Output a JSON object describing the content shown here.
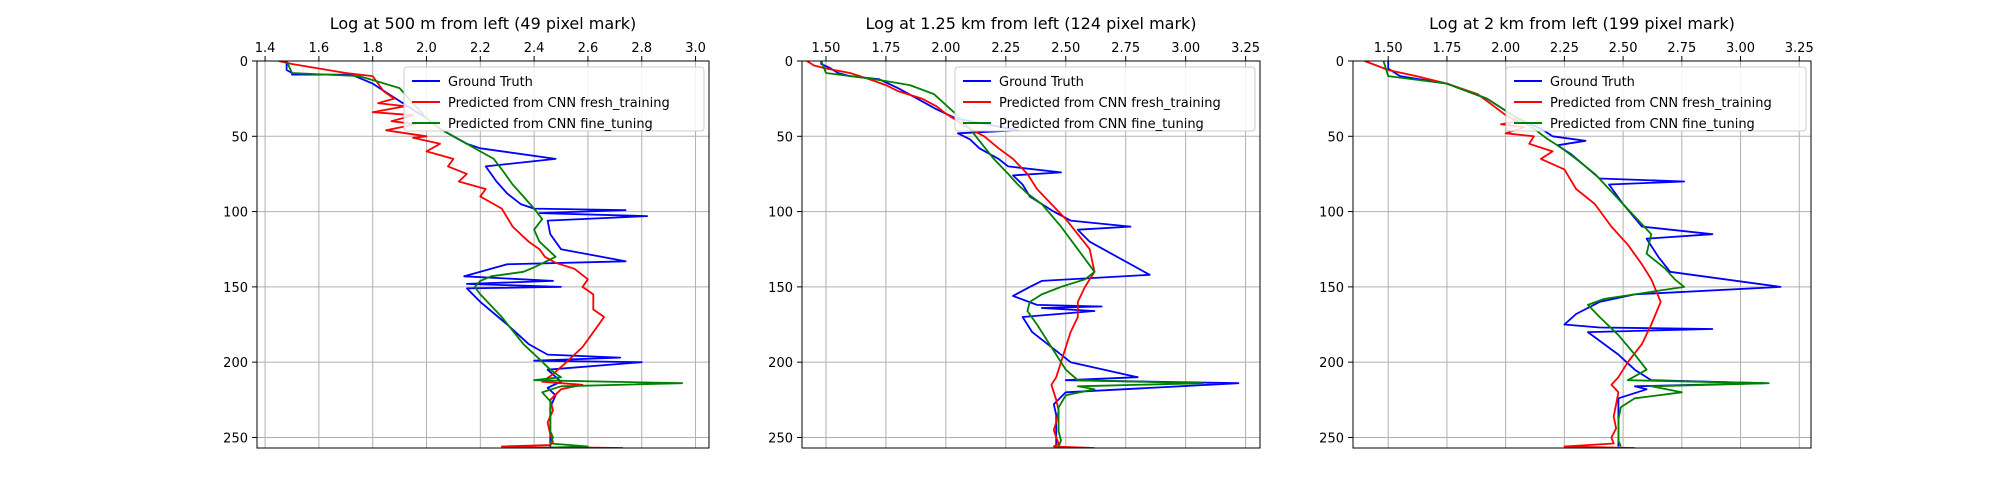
{
  "series_styles": [
    {
      "name": "Ground Truth",
      "color": "#0000ff"
    },
    {
      "name": "Predicted from CNN fresh_training",
      "color": "#ff0000"
    },
    {
      "name": "Predicted from CNN fine_tuning",
      "color": "#008000"
    }
  ],
  "chart_data": [
    {
      "type": "line",
      "orientation": "vertical-profile",
      "title": "Log at 500 m from left (49 pixel mark)",
      "xlim": [
        1.37,
        3.05
      ],
      "ylim": [
        257,
        0
      ],
      "xticks": [
        "1.4",
        "1.6",
        "1.8",
        "2.0",
        "2.2",
        "2.4",
        "2.6",
        "2.8",
        "3.0"
      ],
      "xtick_values": [
        1.4,
        1.6,
        1.8,
        2.0,
        2.2,
        2.4,
        2.6,
        2.8,
        3.0
      ],
      "yticks": [
        "0",
        "50",
        "100",
        "150",
        "200",
        "250"
      ],
      "ytick_values": [
        0,
        50,
        100,
        150,
        200,
        250
      ],
      "grid": true,
      "legend": "upper-right",
      "series": [
        {
          "name": "Ground Truth",
          "color": "#0000ff",
          "x": [
            1.48,
            1.48,
            1.5,
            1.5,
            1.72,
            1.8,
            1.86,
            1.93,
            2.0,
            2.05,
            2.1,
            2.15,
            2.2,
            2.48,
            2.22,
            2.26,
            2.3,
            2.35,
            2.4,
            2.74,
            2.42,
            2.82,
            2.45,
            2.46,
            2.5,
            2.74,
            2.3,
            2.14,
            2.47,
            2.15,
            2.5,
            2.15,
            2.2,
            2.3,
            2.38,
            2.45,
            2.72,
            2.4,
            2.8,
            2.45,
            2.5,
            2.45,
            2.48,
            2.46,
            2.46,
            2.46,
            2.46
          ],
          "y": [
            0,
            6,
            8,
            9,
            9,
            15,
            22,
            30,
            38,
            45,
            50,
            55,
            58,
            65,
            70,
            80,
            88,
            95,
            98,
            99,
            101,
            103,
            106,
            115,
            125,
            133,
            135,
            143,
            146,
            148,
            150,
            151,
            160,
            175,
            188,
            195,
            197,
            199,
            200,
            205,
            213,
            217,
            222,
            230,
            240,
            250,
            256
          ]
        },
        {
          "name": "Predicted from CNN fresh_training",
          "color": "#ff0000",
          "x": [
            1.45,
            1.5,
            1.6,
            1.7,
            1.8,
            1.84,
            1.88,
            1.82,
            1.92,
            1.8,
            1.95,
            1.87,
            1.96,
            1.85,
            2.0,
            1.95,
            2.05,
            2.0,
            2.1,
            2.08,
            2.15,
            2.12,
            2.22,
            2.2,
            2.28,
            2.32,
            2.38,
            2.42,
            2.44,
            2.48,
            2.55,
            2.6,
            2.58,
            2.62,
            2.62,
            2.66,
            2.62,
            2.58,
            2.52,
            2.47,
            2.43,
            2.58,
            2.5,
            2.46,
            2.47,
            2.45,
            2.46,
            2.47,
            2.46,
            2.28,
            2.73
          ],
          "y": [
            0,
            2,
            5,
            8,
            10,
            20,
            25,
            28,
            30,
            34,
            36,
            40,
            42,
            46,
            50,
            51,
            55,
            60,
            65,
            70,
            75,
            80,
            85,
            90,
            98,
            110,
            120,
            125,
            130,
            134,
            138,
            145,
            150,
            155,
            165,
            170,
            180,
            190,
            200,
            208,
            213,
            215,
            218,
            225,
            232,
            240,
            248,
            253,
            255,
            256,
            257
          ]
        },
        {
          "name": "Predicted from CNN fine_tuning",
          "color": "#008000",
          "x": [
            1.48,
            1.5,
            1.75,
            1.9,
            1.95,
            2.0,
            2.05,
            2.1,
            2.12,
            2.2,
            2.25,
            2.28,
            2.32,
            2.36,
            2.4,
            2.43,
            2.4,
            2.42,
            2.48,
            2.4,
            2.36,
            2.24,
            2.2,
            2.18,
            2.2,
            2.28,
            2.36,
            2.42,
            2.46,
            2.5,
            2.4,
            2.95,
            2.5,
            2.43,
            2.46,
            2.46,
            2.46,
            2.46,
            2.47,
            2.46,
            2.6,
            2.4
          ],
          "y": [
            0,
            8,
            10,
            18,
            28,
            38,
            45,
            50,
            52,
            60,
            65,
            72,
            82,
            90,
            98,
            105,
            112,
            120,
            130,
            137,
            140,
            143,
            146,
            150,
            155,
            170,
            188,
            198,
            205,
            210,
            212,
            214,
            216,
            220,
            226,
            232,
            240,
            246,
            250,
            254,
            256,
            257
          ]
        }
      ]
    },
    {
      "type": "line",
      "orientation": "vertical-profile",
      "title": "Log at 1.25 km from left (124 pixel mark)",
      "xlim": [
        1.4,
        3.31
      ],
      "ylim": [
        257,
        0
      ],
      "xticks": [
        "1.50",
        "1.75",
        "2.00",
        "2.25",
        "2.50",
        "2.75",
        "3.00",
        "3.25"
      ],
      "xtick_values": [
        1.5,
        1.75,
        2.0,
        2.25,
        2.5,
        2.75,
        3.0,
        3.25
      ],
      "yticks": [
        "0",
        "50",
        "100",
        "150",
        "200",
        "250"
      ],
      "ytick_values": [
        0,
        50,
        100,
        150,
        200,
        250
      ],
      "grid": true,
      "legend": "upper-right",
      "series": [
        {
          "name": "Ground Truth",
          "color": "#0000ff",
          "x": [
            1.48,
            1.48,
            1.52,
            1.55,
            1.6,
            1.72,
            1.8,
            1.88,
            1.96,
            2.04,
            2.3,
            2.05,
            2.1,
            2.14,
            2.22,
            2.26,
            2.48,
            2.28,
            2.32,
            2.35,
            2.45,
            2.52,
            2.77,
            2.55,
            2.6,
            2.85,
            2.4,
            2.35,
            2.28,
            2.38,
            2.65,
            2.4,
            2.62,
            2.32,
            2.36,
            2.44,
            2.52,
            2.8,
            2.5,
            3.22,
            2.5,
            2.45,
            2.46,
            2.46,
            2.46,
            2.46
          ],
          "y": [
            0,
            2,
            5,
            8,
            10,
            12,
            18,
            25,
            32,
            38,
            46,
            48,
            52,
            58,
            65,
            70,
            74,
            76,
            82,
            90,
            100,
            106,
            110,
            112,
            120,
            142,
            146,
            150,
            156,
            162,
            163,
            164,
            166,
            170,
            180,
            190,
            200,
            210,
            212,
            214,
            220,
            228,
            235,
            243,
            250,
            256
          ]
        },
        {
          "name": "Predicted from CNN fresh_training",
          "color": "#ff0000",
          "x": [
            1.42,
            1.45,
            1.5,
            1.6,
            1.68,
            1.75,
            1.8,
            1.9,
            1.96,
            2.0,
            2.05,
            2.1,
            2.16,
            2.22,
            2.28,
            2.34,
            2.38,
            2.44,
            2.5,
            2.55,
            2.6,
            2.62,
            2.58,
            2.55,
            2.55,
            2.52,
            2.5,
            2.48,
            2.46,
            2.44,
            2.45,
            2.46,
            2.47,
            2.46,
            2.45,
            2.46,
            2.47,
            2.45,
            2.62
          ],
          "y": [
            0,
            3,
            5,
            8,
            12,
            16,
            20,
            25,
            30,
            35,
            40,
            45,
            50,
            58,
            65,
            75,
            85,
            95,
            105,
            115,
            125,
            140,
            150,
            160,
            170,
            180,
            190,
            200,
            210,
            215,
            220,
            225,
            232,
            240,
            245,
            250,
            254,
            256,
            257
          ]
        },
        {
          "name": "Predicted from CNN fine_tuning",
          "color": "#008000",
          "x": [
            1.48,
            1.5,
            1.7,
            1.85,
            1.95,
            2.04,
            2.1,
            2.15,
            2.2,
            2.26,
            2.3,
            2.34,
            2.4,
            2.48,
            2.55,
            2.62,
            2.58,
            2.48,
            2.4,
            2.35,
            2.34,
            2.38,
            2.42,
            2.46,
            2.5,
            2.55,
            3.07,
            2.55,
            2.62,
            2.5,
            2.47,
            2.47,
            2.47,
            2.48,
            2.47
          ],
          "y": [
            0,
            8,
            12,
            16,
            22,
            35,
            45,
            55,
            65,
            75,
            82,
            88,
            95,
            110,
            125,
            140,
            145,
            150,
            155,
            160,
            166,
            175,
            185,
            195,
            205,
            212,
            214,
            216,
            218,
            222,
            230,
            238,
            246,
            252,
            256
          ]
        }
      ]
    },
    {
      "type": "line",
      "orientation": "vertical-profile",
      "title": "Log at 2 km from left (199 pixel mark)",
      "xlim": [
        1.35,
        3.3
      ],
      "ylim": [
        257,
        0
      ],
      "xticks": [
        "1.50",
        "1.75",
        "2.00",
        "2.25",
        "2.50",
        "2.75",
        "3.00",
        "3.25"
      ],
      "xtick_values": [
        1.5,
        1.75,
        2.0,
        2.25,
        2.5,
        2.75,
        3.0,
        3.25
      ],
      "yticks": [
        "0",
        "50",
        "100",
        "150",
        "200",
        "250"
      ],
      "ytick_values": [
        0,
        50,
        100,
        150,
        200,
        250
      ],
      "grid": true,
      "legend": "upper-right",
      "series": [
        {
          "name": "Ground Truth",
          "color": "#0000ff",
          "x": [
            1.5,
            1.5,
            1.55,
            1.75,
            1.92,
            2.05,
            2.15,
            2.2,
            2.34,
            2.22,
            2.28,
            2.34,
            2.4,
            2.76,
            2.44,
            2.5,
            2.58,
            2.88,
            2.6,
            2.65,
            2.7,
            3.17,
            2.55,
            2.4,
            2.3,
            2.25,
            2.4,
            2.88,
            2.35,
            2.48,
            2.55,
            2.62,
            3.1,
            2.55,
            2.6,
            2.48,
            2.48,
            2.48,
            2.48
          ],
          "y": [
            0,
            5,
            10,
            15,
            25,
            38,
            45,
            50,
            53,
            56,
            62,
            70,
            78,
            80,
            82,
            95,
            110,
            115,
            118,
            130,
            140,
            150,
            155,
            160,
            168,
            175,
            177,
            178,
            180,
            195,
            205,
            212,
            214,
            216,
            218,
            224,
            232,
            242,
            256
          ]
        },
        {
          "name": "Predicted from CNN fresh_training",
          "color": "#ff0000",
          "x": [
            1.4,
            1.45,
            1.5,
            1.62,
            1.75,
            1.88,
            1.95,
            2.0,
            2.05,
            1.98,
            2.08,
            2.0,
            2.12,
            2.1,
            2.2,
            2.15,
            2.25,
            2.3,
            2.38,
            2.45,
            2.52,
            2.58,
            2.62,
            2.66,
            2.62,
            2.58,
            2.52,
            2.48,
            2.45,
            2.48,
            2.47,
            2.46,
            2.47,
            2.45,
            2.46,
            2.25,
            2.55
          ],
          "y": [
            0,
            3,
            6,
            10,
            15,
            22,
            30,
            36,
            40,
            42,
            44,
            48,
            50,
            55,
            60,
            65,
            72,
            85,
            95,
            110,
            122,
            135,
            145,
            160,
            175,
            188,
            200,
            210,
            215,
            220,
            228,
            236,
            244,
            250,
            254,
            256,
            257
          ]
        },
        {
          "name": "Predicted from CNN fine_tuning",
          "color": "#008000",
          "x": [
            1.48,
            1.5,
            1.75,
            1.92,
            2.05,
            2.12,
            2.18,
            2.24,
            2.3,
            2.38,
            2.5,
            2.62,
            2.6,
            2.68,
            2.72,
            2.76,
            2.42,
            2.35,
            2.4,
            2.48,
            2.55,
            2.6,
            2.52,
            3.12,
            2.62,
            2.75,
            2.55,
            2.49,
            2.48,
            2.48,
            2.48,
            2.49
          ],
          "y": [
            0,
            10,
            15,
            25,
            38,
            45,
            52,
            58,
            65,
            75,
            95,
            115,
            128,
            138,
            145,
            150,
            158,
            162,
            170,
            182,
            195,
            205,
            212,
            214,
            216,
            220,
            224,
            230,
            238,
            246,
            252,
            256
          ]
        }
      ]
    }
  ]
}
